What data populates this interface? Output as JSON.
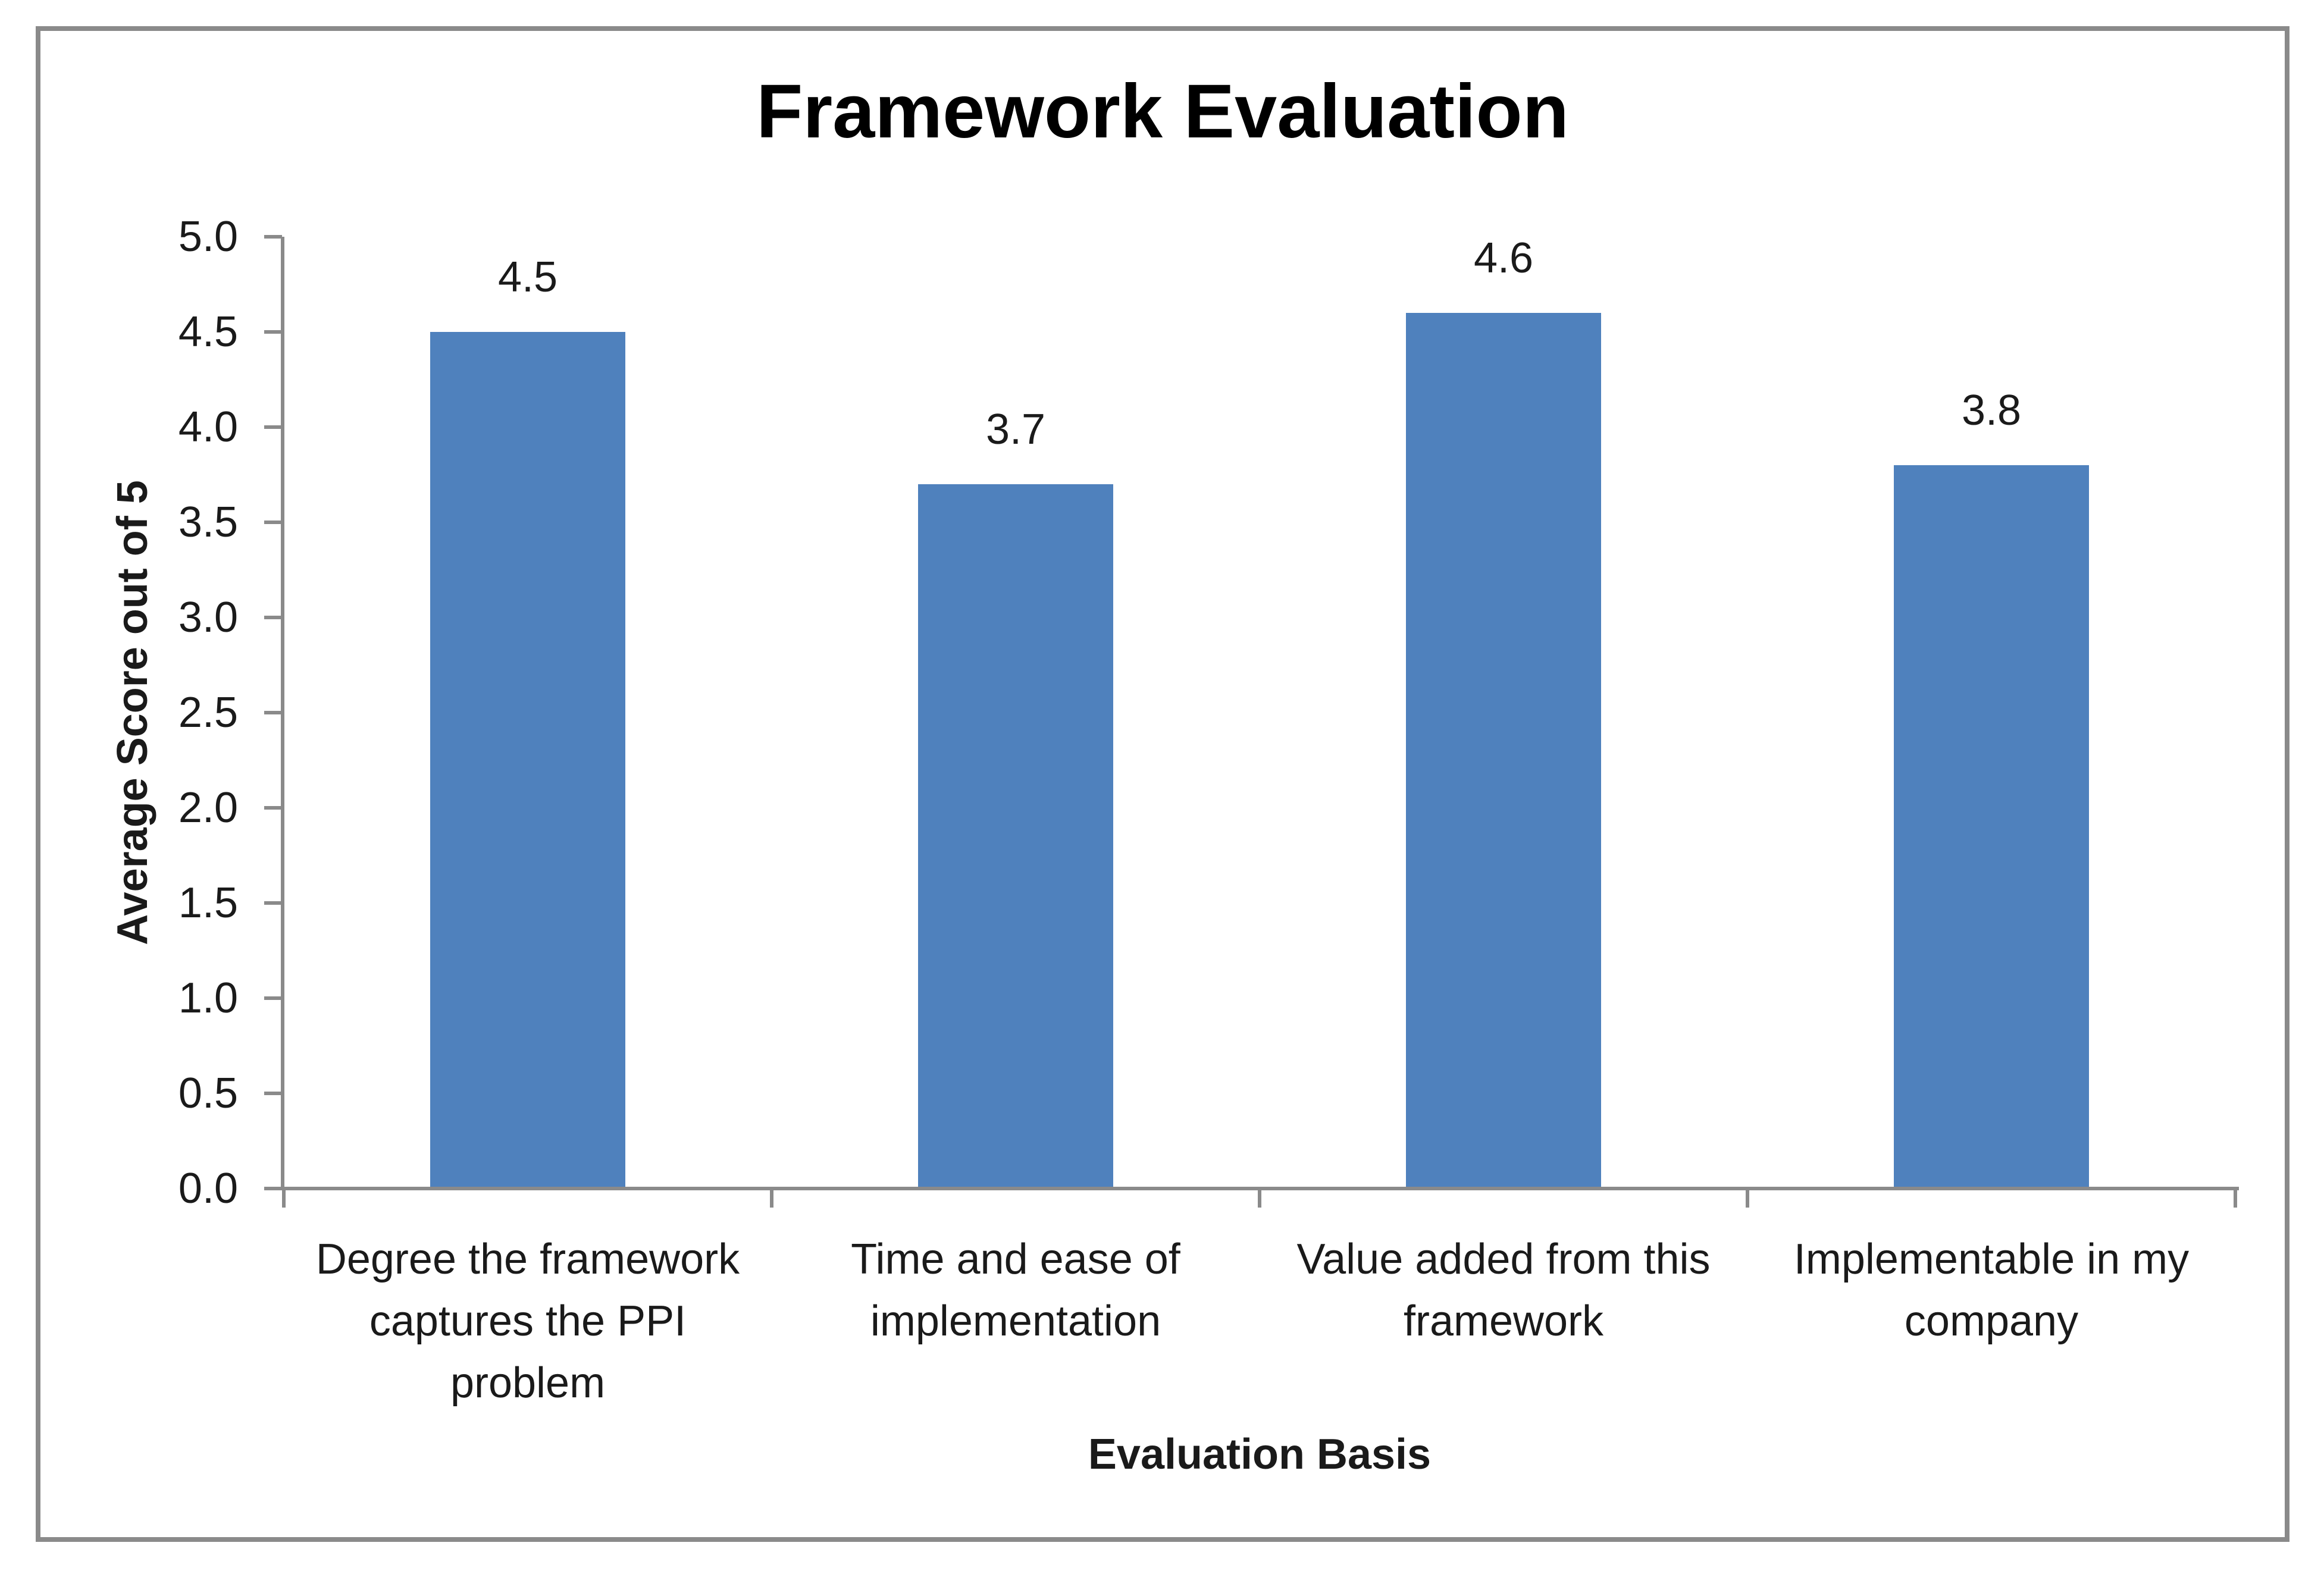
{
  "chart": {
    "frame_border_color": "#8A8A8A",
    "background": "#FFFFFF"
  },
  "chart_data": {
    "type": "bar",
    "title": "Framework Evaluation",
    "xlabel": "Evaluation Basis",
    "ylabel": "Average Score out of 5",
    "categories": [
      "Degree the framework captures the PPI problem",
      "Time and ease of implementation",
      "Value added from this framework",
      "Implementable in my company"
    ],
    "category_lines": [
      [
        "Degree the framework",
        "captures the PPI",
        "problem"
      ],
      [
        "Time and ease of",
        "implementation"
      ],
      [
        "Value added from this",
        "framework"
      ],
      [
        "Implementable in my",
        "company"
      ]
    ],
    "values": [
      4.5,
      3.7,
      4.6,
      3.8
    ],
    "data_labels": [
      "4.5",
      "3.7",
      "4.6",
      "3.8"
    ],
    "ylim": [
      0.0,
      5.0
    ],
    "ytick_step": 0.5,
    "yticks": [
      "5.0",
      "4.5",
      "4.0",
      "3.5",
      "3.0",
      "2.5",
      "2.0",
      "1.5",
      "1.0",
      "0.5",
      "0.0"
    ],
    "grid": false,
    "legend": "none",
    "bar_color": "#4F81BD",
    "axis_color": "#8A8A8A",
    "text_color": "#1A1A1A",
    "title_color": "#000000"
  }
}
